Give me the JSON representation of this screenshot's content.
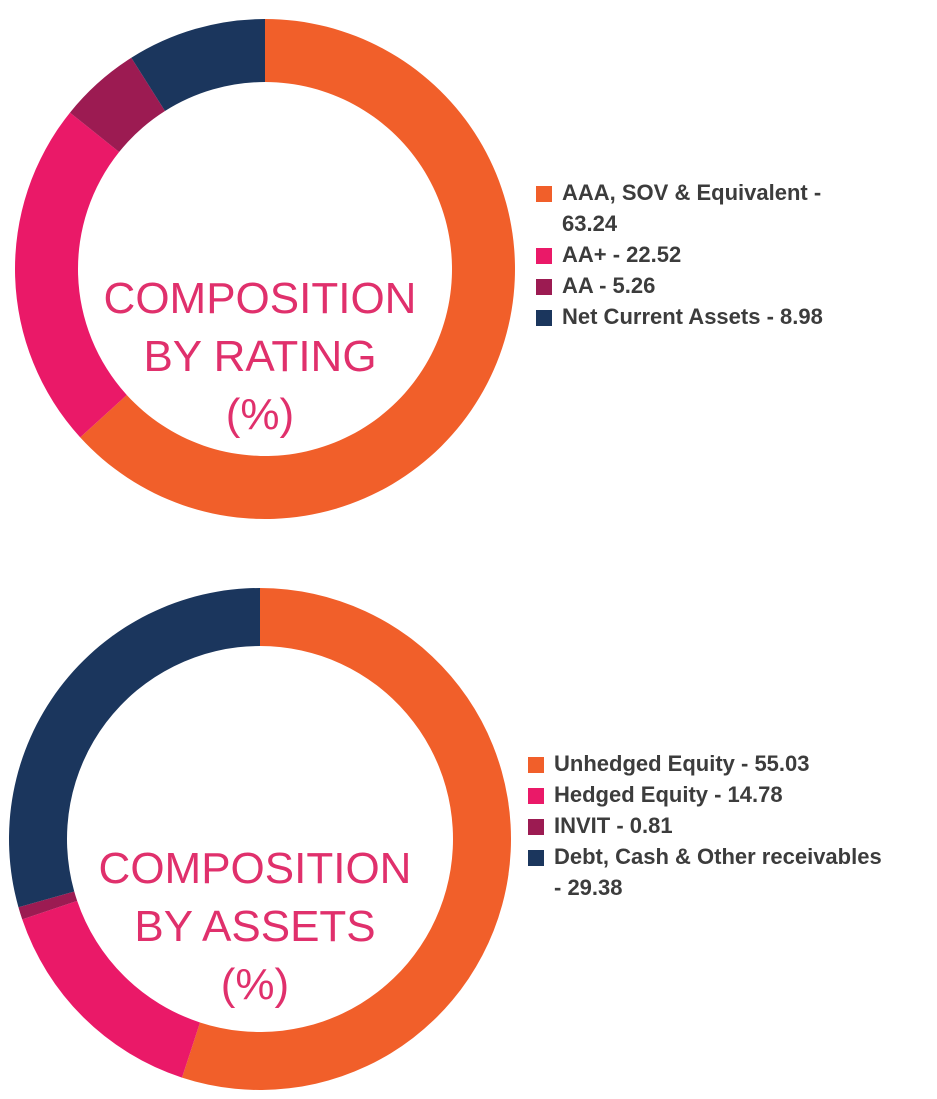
{
  "chart_data": [
    {
      "type": "pie",
      "title": "COMPOSITION BY RATING (%)",
      "title_lines": [
        "COMPOSITION",
        "BY RATING",
        "(%)"
      ],
      "legend_position": "right",
      "categories": [
        "AAA, SOV & Equivalent",
        "AA+",
        "AA",
        "Net Current Assets"
      ],
      "values": [
        63.24,
        22.52,
        5.26,
        8.98
      ],
      "colors": [
        "#f15f2a",
        "#ea1968",
        "#9c1b52",
        "#1b365d"
      ],
      "legend": [
        {
          "lines": [
            "AAA, SOV & Equivalent -",
            "63.24"
          ]
        },
        {
          "lines": [
            "AA+ - 22.52"
          ]
        },
        {
          "lines": [
            "AA - 5.26"
          ]
        },
        {
          "lines": [
            "Net Current Assets - 8.98"
          ]
        }
      ]
    },
    {
      "type": "pie",
      "title": "COMPOSITION BY ASSETS (%)",
      "title_lines": [
        "COMPOSITION",
        "BY ASSETS",
        "(%)"
      ],
      "legend_position": "right",
      "categories": [
        "Unhedged Equity",
        "Hedged Equity",
        "INVIT",
        "Debt, Cash & Other receivables"
      ],
      "values": [
        55.03,
        14.78,
        0.81,
        29.38
      ],
      "colors": [
        "#f15f2a",
        "#ea1968",
        "#9c1b52",
        "#1b365d"
      ],
      "legend": [
        {
          "lines": [
            "Unhedged Equity - 55.03"
          ]
        },
        {
          "lines": [
            "Hedged Equity - 14.78"
          ]
        },
        {
          "lines": [
            "INVIT - 0.81"
          ]
        },
        {
          "lines": [
            "Debt, Cash & Other receivables",
            "- 29.38"
          ]
        }
      ]
    }
  ]
}
